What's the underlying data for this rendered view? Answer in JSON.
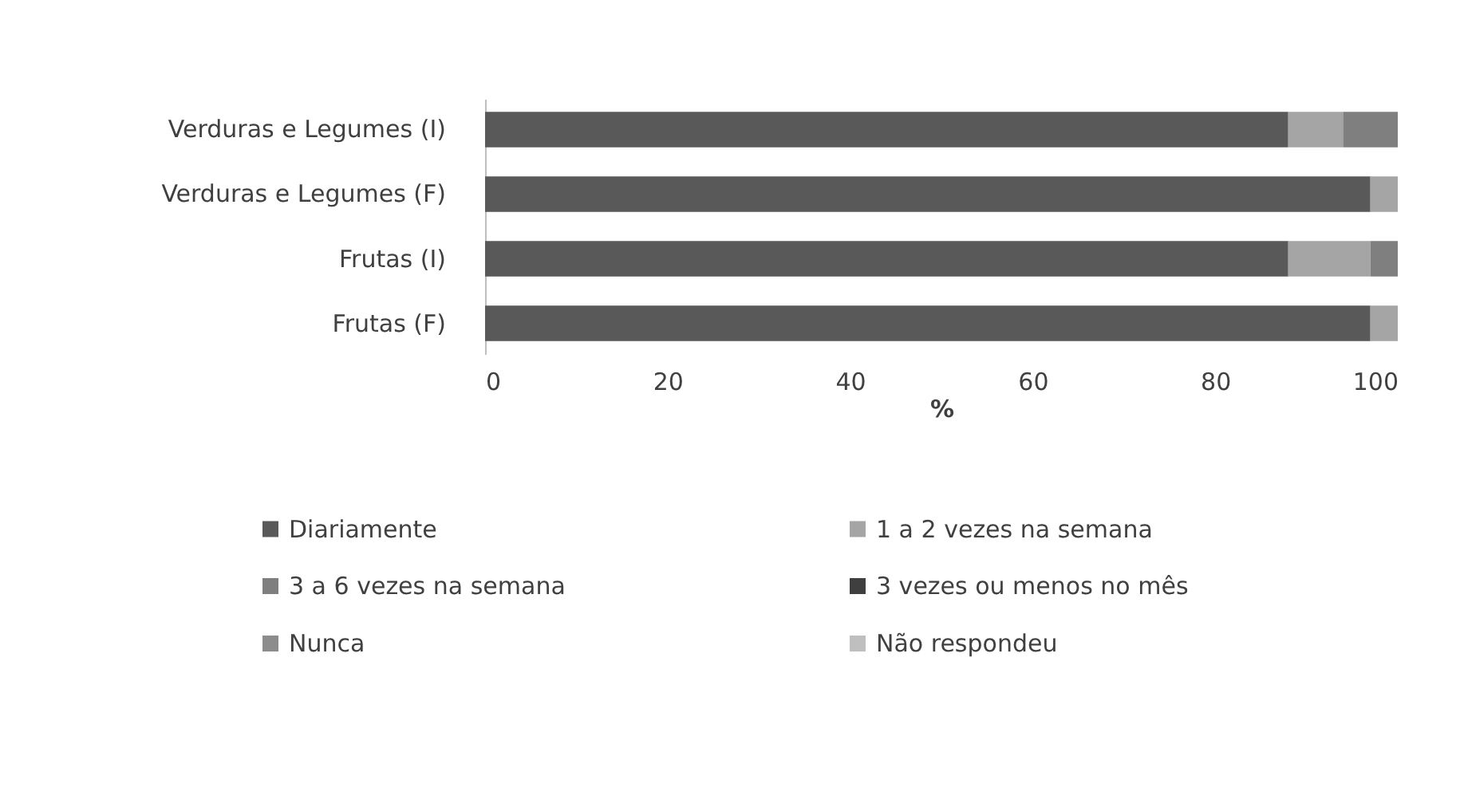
{
  "chart_data": {
    "type": "bar",
    "orientation": "horizontal",
    "stacked": true,
    "xlabel": "%",
    "categories": [
      "Verduras e Legumes (I)",
      "Verduras e Legumes (F)",
      "Frutas (I)",
      "Frutas (F)"
    ],
    "series": [
      {
        "name": "Diariamente",
        "color": "#595959",
        "values": [
          88,
          97,
          88,
          97
        ]
      },
      {
        "name": "1 a 2 vezes na semana",
        "color": "#a5a5a5",
        "values": [
          6,
          3,
          9,
          3
        ]
      },
      {
        "name": "3 a 6 vezes na semana",
        "color": "#7f7f7f",
        "values": [
          6,
          0,
          3,
          0
        ]
      },
      {
        "name": "3 vezes ou menos no mês",
        "color": "#3f3f3f",
        "values": [
          0,
          0,
          0,
          0
        ]
      },
      {
        "name": "Nunca",
        "color": "#8c8c8c",
        "values": [
          0,
          0,
          0,
          0
        ]
      },
      {
        "name": "Não respondeu",
        "color": "#bfbfbf",
        "values": [
          0,
          0,
          0,
          0
        ]
      }
    ],
    "xlim": [
      0,
      100
    ],
    "xticks": [
      0,
      20,
      40,
      60,
      80,
      100
    ],
    "grid": false,
    "legend": "bottom"
  }
}
